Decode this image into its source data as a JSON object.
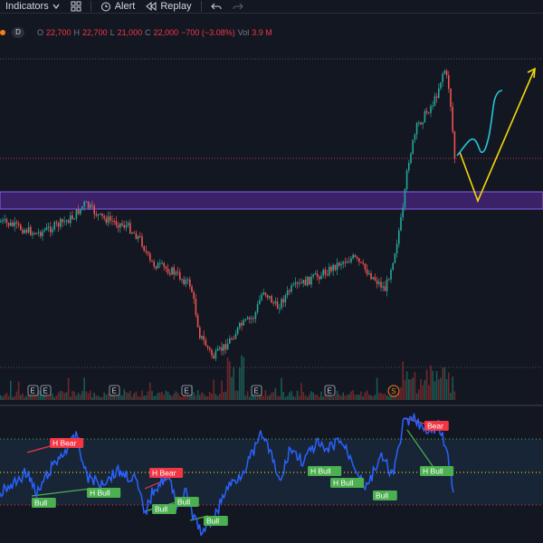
{
  "toolbar": {
    "indicators_label": "Indicators",
    "alert_label": "Alert",
    "replay_label": "Replay"
  },
  "legend": {
    "interval": "D",
    "o_label": "O",
    "o_value": "22,700",
    "h_label": "H",
    "h_value": "22,700",
    "l_label": "L",
    "l_value": "21,000",
    "c_label": "C",
    "c_value": "22,000",
    "change": "−700 (−3.08%)",
    "vol_label": "Vol",
    "vol_value": "3.9 M"
  },
  "earnings_marker": "E",
  "split_marker": "S",
  "indicator_labels": {
    "h_bear": "H Bear",
    "bear": "Bear",
    "h_bull": "H Bull",
    "bull": "Bull"
  },
  "colors": {
    "background": "#131722",
    "up": "#26a69a",
    "down": "#ef5350",
    "zone": "#7e57c2",
    "rsi_line": "#2962ff",
    "bull": "#4caf50",
    "bear": "#f23645",
    "arrow": "#f5d90a",
    "sketch": "#26c6da"
  }
}
